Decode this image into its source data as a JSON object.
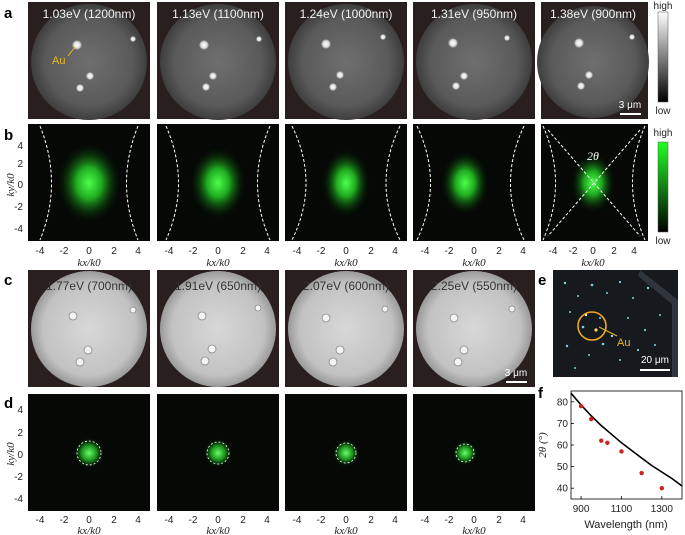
{
  "panel_letters": [
    "a",
    "b",
    "c",
    "d",
    "e",
    "f"
  ],
  "row_a": {
    "titles": [
      "1.03eV (1200nm)",
      "1.13eV (1100nm)",
      "1.24eV (1000nm)",
      "1.31eV (950nm)",
      "1.38eV (900nm)"
    ],
    "au_label": "Au",
    "scalebar_label": "3 μm"
  },
  "row_c": {
    "titles": [
      "1.77eV (700nm)",
      "1.91eV (650nm)",
      "2.07eV (600nm)",
      "2.25eV (550nm)"
    ],
    "scalebar_label": "3 μm"
  },
  "kspace": {
    "ylabel": "ky/k0",
    "xlabel": "kx/k0",
    "xticks": [
      "-4",
      "-2",
      "0",
      "2",
      "4"
    ],
    "yticks": [
      "4",
      "2",
      "0",
      "-2",
      "-4"
    ],
    "theta_label": "2θ"
  },
  "colorbars": {
    "gray": {
      "high": "high",
      "low": "low"
    },
    "green": {
      "high": "high",
      "low": "low"
    }
  },
  "panel_e": {
    "au_label": "Au",
    "scalebar_label": "20 μm"
  },
  "chart_data": {
    "type": "scatter",
    "xlabel": "Wavelength (nm)",
    "ylabel": "2θ (°)",
    "xlim": [
      850,
      1400
    ],
    "ylim": [
      35,
      85
    ],
    "xticks": [
      900,
      1100,
      1300
    ],
    "yticks": [
      40,
      50,
      60,
      70,
      80
    ],
    "points": {
      "x": [
        900,
        950,
        1000,
        1030,
        1100,
        1200,
        1300
      ],
      "y": [
        78,
        72,
        62,
        61,
        57,
        47,
        40
      ]
    },
    "curve": {
      "x": [
        850,
        900,
        950,
        1000,
        1050,
        1100,
        1150,
        1200,
        1250,
        1300,
        1350,
        1400
      ],
      "y": [
        84,
        78.5,
        73.5,
        69,
        65,
        61,
        57.5,
        54,
        50.5,
        47.5,
        44.5,
        41
      ]
    },
    "colors": {
      "points": "#cc2222",
      "curve": "#000000"
    }
  }
}
